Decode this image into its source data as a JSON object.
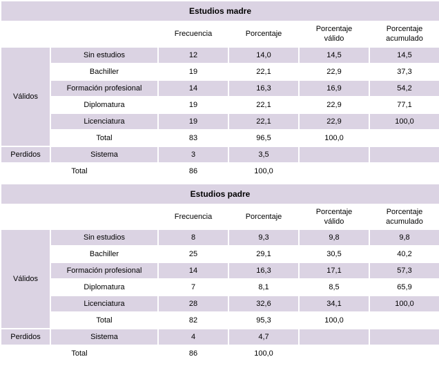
{
  "colors": {
    "band": "#dbd3e3",
    "white": "#ffffff",
    "border": "#ffffff",
    "text": "#000000"
  },
  "headers": {
    "frecuencia": "Frecuencia",
    "porcentaje": "Porcentaje",
    "porcentaje_valido_l1": "Porcentaje",
    "porcentaje_valido_l2": "válido",
    "porcentaje_acum_l1": "Porcentaje",
    "porcentaje_acum_l2": "acumulado"
  },
  "group_labels": {
    "validos": "Válidos",
    "perdidos": "Perdidos",
    "sistema": "Sistema",
    "total": "Total"
  },
  "madre": {
    "title": "Estudios madre",
    "rows": [
      {
        "label": "Sin estudios",
        "f": "12",
        "p": "14,0",
        "pv": "14,5",
        "pa": "14,5"
      },
      {
        "label": "Bachiller",
        "f": "19",
        "p": "22,1",
        "pv": "22,9",
        "pa": "37,3"
      },
      {
        "label": "Formación profesional",
        "f": "14",
        "p": "16,3",
        "pv": "16,9",
        "pa": "54,2"
      },
      {
        "label": "Diplomatura",
        "f": "19",
        "p": "22,1",
        "pv": "22,9",
        "pa": "77,1"
      },
      {
        "label": "Licenciatura",
        "f": "19",
        "p": "22,1",
        "pv": "22,9",
        "pa": "100,0"
      },
      {
        "label": "Total",
        "f": "83",
        "p": "96,5",
        "pv": "100,0",
        "pa": ""
      }
    ],
    "perdidos": {
      "f": "3",
      "p": "3,5"
    },
    "total": {
      "f": "86",
      "p": "100,0"
    }
  },
  "padre": {
    "title": "Estudios padre",
    "rows": [
      {
        "label": "Sin estudios",
        "f": "8",
        "p": "9,3",
        "pv": "9,8",
        "pa": "9,8"
      },
      {
        "label": "Bachiller",
        "f": "25",
        "p": "29,1",
        "pv": "30,5",
        "pa": "40,2"
      },
      {
        "label": "Formación profesional",
        "f": "14",
        "p": "16,3",
        "pv": "17,1",
        "pa": "57,3"
      },
      {
        "label": "Diplomatura",
        "f": "7",
        "p": "8,1",
        "pv": "8,5",
        "pa": "65,9"
      },
      {
        "label": "Licenciatura",
        "f": "28",
        "p": "32,6",
        "pv": "34,1",
        "pa": "100,0"
      },
      {
        "label": "Total",
        "f": "82",
        "p": "95,3",
        "pv": "100,0",
        "pa": ""
      }
    ],
    "perdidos": {
      "f": "4",
      "p": "4,7"
    },
    "total": {
      "f": "86",
      "p": "100,0"
    }
  }
}
